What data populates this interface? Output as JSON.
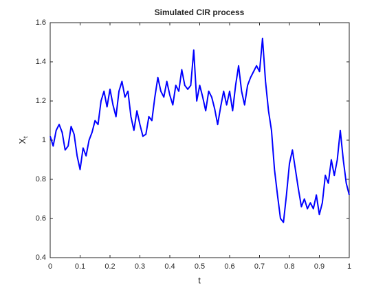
{
  "chart_data": {
    "type": "line",
    "title": "Simulated CIR process",
    "xlabel": "t",
    "ylabel": [
      "X",
      "t"
    ],
    "x": [
      0,
      0.01,
      0.02,
      0.03,
      0.04,
      0.05,
      0.06,
      0.07,
      0.08,
      0.09,
      0.1,
      0.11,
      0.12,
      0.13,
      0.14,
      0.15,
      0.16,
      0.17,
      0.18,
      0.19,
      0.2,
      0.21,
      0.22,
      0.23,
      0.24,
      0.25,
      0.26,
      0.27,
      0.28,
      0.29,
      0.3,
      0.31,
      0.32,
      0.33,
      0.34,
      0.35,
      0.36,
      0.37,
      0.38,
      0.39,
      0.4,
      0.41,
      0.42,
      0.43,
      0.44,
      0.45,
      0.46,
      0.47,
      0.48,
      0.49,
      0.5,
      0.51,
      0.52,
      0.53,
      0.54,
      0.55,
      0.56,
      0.57,
      0.58,
      0.59,
      0.6,
      0.61,
      0.62,
      0.63,
      0.64,
      0.65,
      0.66,
      0.67,
      0.68,
      0.69,
      0.7,
      0.71,
      0.72,
      0.73,
      0.74,
      0.75,
      0.76,
      0.77,
      0.78,
      0.79,
      0.8,
      0.81,
      0.82,
      0.83,
      0.84,
      0.85,
      0.86,
      0.87,
      0.88,
      0.89,
      0.9,
      0.91,
      0.92,
      0.93,
      0.94,
      0.95,
      0.96,
      0.97,
      0.98,
      0.99,
      1
    ],
    "series": [
      {
        "name": "X",
        "color": "#0000ff",
        "values": [
          1.02,
          0.97,
          1.05,
          1.08,
          1.04,
          0.95,
          0.97,
          1.07,
          1.03,
          0.92,
          0.85,
          0.96,
          0.92,
          1.0,
          1.04,
          1.1,
          1.08,
          1.2,
          1.25,
          1.17,
          1.26,
          1.18,
          1.12,
          1.25,
          1.3,
          1.22,
          1.25,
          1.12,
          1.05,
          1.15,
          1.08,
          1.02,
          1.03,
          1.12,
          1.1,
          1.22,
          1.32,
          1.25,
          1.22,
          1.3,
          1.23,
          1.18,
          1.28,
          1.25,
          1.36,
          1.28,
          1.26,
          1.28,
          1.46,
          1.2,
          1.28,
          1.22,
          1.15,
          1.25,
          1.22,
          1.16,
          1.08,
          1.17,
          1.25,
          1.18,
          1.25,
          1.15,
          1.28,
          1.38,
          1.25,
          1.18,
          1.28,
          1.32,
          1.35,
          1.38,
          1.35,
          1.52,
          1.3,
          1.15,
          1.05,
          0.85,
          0.72,
          0.6,
          0.58,
          0.72,
          0.88,
          0.95,
          0.85,
          0.75,
          0.66,
          0.7,
          0.65,
          0.68,
          0.65,
          0.72,
          0.62,
          0.68,
          0.82,
          0.78,
          0.9,
          0.82,
          0.9,
          1.05,
          0.9,
          0.78,
          0.72
        ]
      }
    ],
    "xlim": [
      0,
      1
    ],
    "xticks": [
      0,
      0.1,
      0.2,
      0.3,
      0.4,
      0.5,
      0.6,
      0.7,
      0.8,
      0.9,
      1
    ],
    "ylim": [
      0.4,
      1.6
    ],
    "yticks": [
      0.4,
      0.6,
      0.8,
      1,
      1.2,
      1.4,
      1.6
    ],
    "grid": false
  }
}
